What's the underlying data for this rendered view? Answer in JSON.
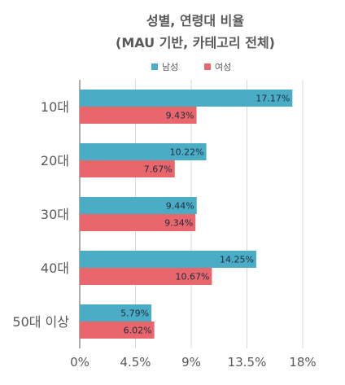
{
  "chart_data": {
    "type": "bar",
    "orientation": "horizontal",
    "title": "성별, 연령대 비율",
    "subtitle": "(MAU 기반, 카테고리 전체)",
    "categories": [
      "10대",
      "20대",
      "30대",
      "40대",
      "50대 이상"
    ],
    "series": [
      {
        "name": "남성",
        "color": "#4BACC6",
        "values": [
          17.17,
          10.22,
          9.44,
          14.25,
          5.79
        ],
        "labels": [
          "17.17%",
          "10.22%",
          "9.44%",
          "14.25%",
          "5.79%"
        ]
      },
      {
        "name": "여성",
        "color": "#E8666C",
        "values": [
          9.43,
          7.67,
          9.34,
          10.67,
          6.02
        ],
        "labels": [
          "9.43%",
          "7.67%",
          "9.34%",
          "10.67%",
          "6.02%"
        ]
      }
    ],
    "xlim": [
      0,
      18
    ],
    "xticks": [
      0,
      4.5,
      9,
      13.5,
      18
    ],
    "xtick_labels": [
      "0%",
      "4.5%",
      "9%",
      "13.5%",
      "18%"
    ],
    "grid": true,
    "legend_position": "top"
  }
}
